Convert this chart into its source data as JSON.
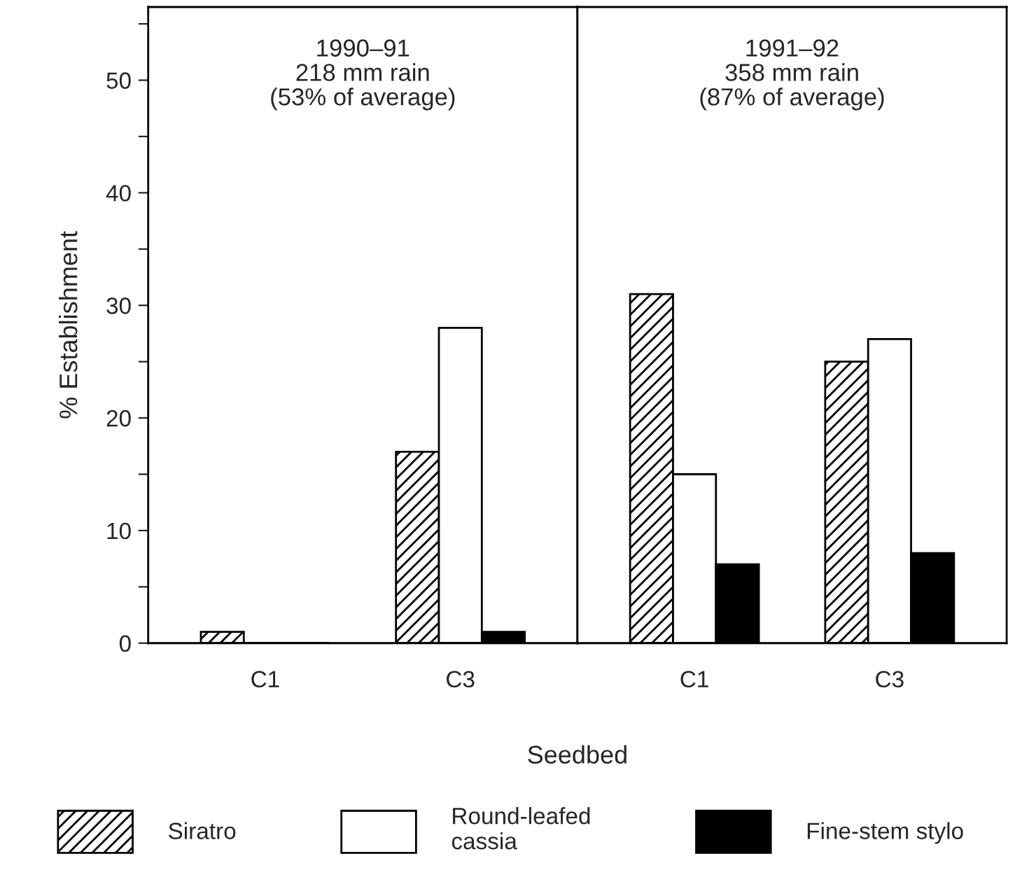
{
  "chart_data": [
    {
      "type": "bar",
      "categories": [
        "C1",
        "C3"
      ],
      "xlabel": "Seedbed",
      "ylabel": "% Establishment",
      "ylim": [
        0,
        56.5
      ],
      "yticks": [
        0,
        {
          "value": 5,
          "label": null
        },
        10,
        {
          "value": 15,
          "label": null
        },
        20,
        {
          "value": 25,
          "label": null
        },
        30,
        {
          "value": 35,
          "label": null
        },
        40,
        {
          "value": 45,
          "label": null
        },
        50,
        {
          "value": 55,
          "label": null
        }
      ],
      "annotations": [
        "1990–91\n218 mm rain\n(53% of average)"
      ],
      "legend": "bottom",
      "series": [
        {
          "name": "Siratro",
          "color": "#000000",
          "values": [
            1,
            17
          ]
        },
        {
          "name": "Round-leafed\ncassia",
          "color": "#ffffff",
          "values": [
            0,
            28
          ]
        },
        {
          "name": "Fine-stem stylo",
          "color": "#000000",
          "values": [
            0,
            1
          ]
        }
      ]
    },
    {
      "type": "bar",
      "categories": [
        "C1",
        "C3"
      ],
      "ylim": [
        0,
        56.5
      ],
      "tick_labels": "x",
      "annotations": [
        "1991–92\n358 mm rain\n(87% of average)"
      ],
      "series": [
        {
          "color": "#000000",
          "values": [
            31,
            25
          ]
        },
        {
          "color": "#ffffff",
          "values": [
            15,
            27
          ]
        },
        {
          "color": "#000000",
          "values": [
            7,
            8
          ]
        }
      ]
    }
  ]
}
